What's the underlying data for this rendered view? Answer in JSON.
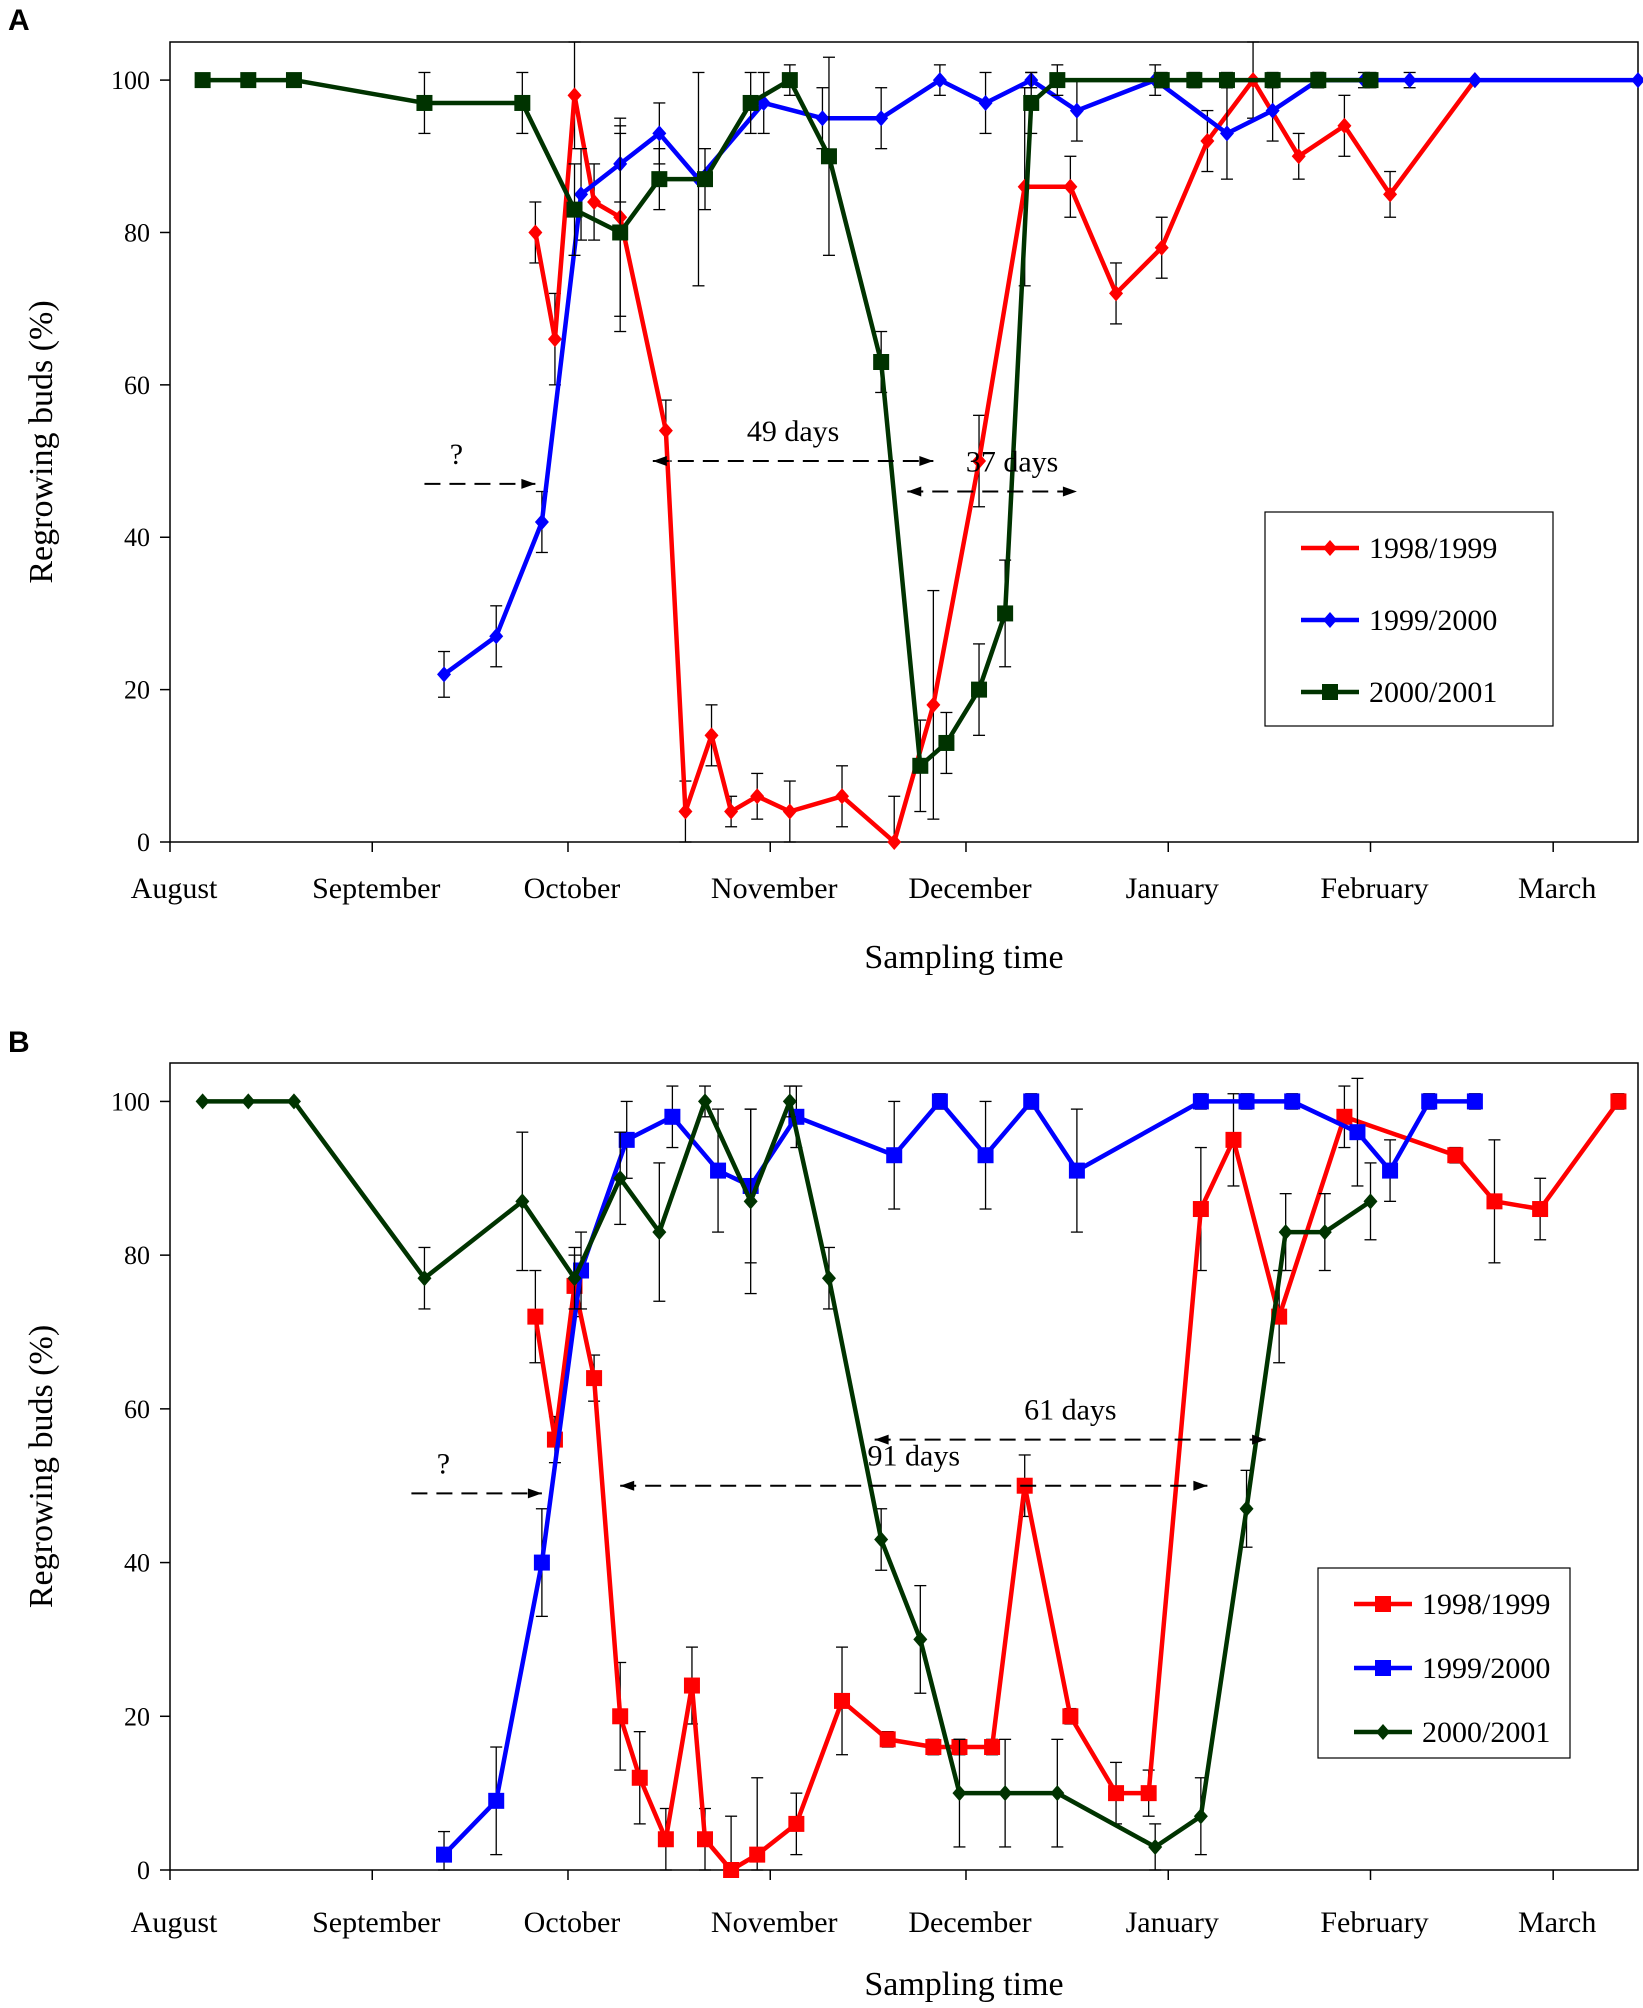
{
  "chart_data": [
    {
      "panel": "A",
      "type": "line",
      "xlabel": "Sampling time",
      "ylabel": "Regrowing buds (%)",
      "ylim": [
        0,
        105
      ],
      "yticks": [
        "0",
        "20",
        "40",
        "60",
        "80",
        "100"
      ],
      "months": [
        "August",
        "September",
        "October",
        "November",
        "December",
        "January",
        "February",
        "March"
      ],
      "x_unit": "days since 1 August",
      "xlim": [
        0,
        225
      ],
      "legend_position": "center-right",
      "series": [
        {
          "name": "1998/1999",
          "color": "#ff0000",
          "marker": "diamond",
          "x": [
            56,
            59,
            62,
            65,
            69,
            76,
            79,
            83,
            86,
            90,
            95,
            103,
            111,
            117,
            124,
            131,
            138,
            145,
            152,
            159,
            166,
            173,
            180,
            187,
            200
          ],
          "y": [
            80,
            66,
            98,
            84,
            82,
            54,
            4,
            14,
            4,
            6,
            4,
            6,
            0,
            18,
            50,
            86,
            86,
            72,
            78,
            92,
            100,
            90,
            94,
            85,
            100
          ],
          "err": [
            4,
            6,
            7,
            5,
            13,
            4,
            4,
            4,
            2,
            3,
            4,
            4,
            6,
            15,
            6,
            13,
            4,
            4,
            4,
            4,
            5,
            3,
            4,
            3,
            0
          ]
        },
        {
          "name": "1999/2000",
          "color": "#0000ff",
          "marker": "diamond",
          "x": [
            42,
            50,
            57,
            63,
            69,
            75,
            81,
            91,
            100,
            109,
            118,
            125,
            132,
            139,
            151,
            162,
            169,
            176,
            183,
            190
          ],
          "y": [
            22,
            27,
            42,
            85,
            89,
            93,
            87,
            97,
            95,
            95,
            100,
            97,
            100,
            96,
            100,
            93,
            96,
            100,
            100,
            100
          ],
          "err": [
            3,
            4,
            4,
            6,
            5,
            4,
            14,
            4,
            4,
            4,
            2,
            4,
            1,
            4,
            2,
            6,
            4,
            1,
            1,
            1
          ],
          "x_extra": [
            200,
            225
          ],
          "y_extra": [
            100,
            100
          ]
        },
        {
          "name": "2000/2001",
          "color": "#003300",
          "marker": "square",
          "x": [
            5,
            12,
            19,
            39,
            54,
            62,
            69,
            75,
            82,
            89,
            95,
            101,
            109,
            115,
            119,
            124,
            128,
            132,
            136,
            152,
            157,
            162,
            169,
            176,
            184
          ],
          "y": [
            100,
            100,
            100,
            97,
            97,
            83,
            80,
            87,
            87,
            97,
            100,
            90,
            63,
            10,
            13,
            20,
            30,
            97,
            100,
            100,
            100,
            100,
            100,
            100,
            100
          ],
          "err": [
            0,
            0,
            0,
            4,
            4,
            6,
            13,
            4,
            4,
            4,
            2,
            13,
            4,
            6,
            4,
            6,
            7,
            4,
            2,
            1,
            1,
            1,
            1,
            1,
            1
          ]
        }
      ],
      "annotations": [
        {
          "text": "?",
          "x_start": 39,
          "x_end": 56,
          "y": 47
        },
        {
          "text": "49 days",
          "x_start": 74,
          "x_end": 117,
          "y": 50
        },
        {
          "text": "37 days",
          "x_start": 113,
          "x_end": 139,
          "y": 46
        }
      ]
    },
    {
      "panel": "B",
      "type": "line",
      "xlabel": "Sampling time",
      "ylabel": "Regrowing buds (%)",
      "ylim": [
        0,
        105
      ],
      "yticks": [
        "0",
        "20",
        "40",
        "60",
        "80",
        "100"
      ],
      "months": [
        "August",
        "September",
        "October",
        "November",
        "December",
        "January",
        "February",
        "March"
      ],
      "x_unit": "days since 1 August",
      "xlim": [
        0,
        225
      ],
      "legend_position": "bottom-right",
      "series": [
        {
          "name": "1998/1999",
          "color": "#ff0000",
          "marker": "square",
          "x": [
            56,
            59,
            62,
            65,
            69,
            72,
            76,
            80,
            82,
            86,
            90,
            96,
            103,
            110,
            117,
            121,
            126,
            131,
            138,
            145,
            150,
            158,
            163,
            170,
            180,
            197,
            203,
            210,
            222
          ],
          "y": [
            72,
            56,
            76,
            64,
            20,
            12,
            4,
            24,
            4,
            0,
            2,
            6,
            22,
            17,
            16,
            16,
            16,
            50,
            20,
            10,
            10,
            86,
            95,
            72,
            98,
            93,
            87,
            86,
            100
          ],
          "err": [
            6,
            3,
            4,
            3,
            7,
            6,
            4,
            5,
            4,
            7,
            10,
            4,
            7,
            1,
            1,
            1,
            1,
            4,
            1,
            4,
            3,
            8,
            6,
            6,
            4,
            1,
            8,
            4,
            1
          ]
        },
        {
          "name": "1999/2000",
          "color": "#0000ff",
          "marker": "square",
          "x": [
            42,
            50,
            57,
            63,
            70,
            77,
            84,
            89,
            96,
            111,
            118,
            125,
            132,
            139,
            158,
            165,
            172,
            182,
            187,
            193,
            200
          ],
          "y": [
            2,
            9,
            40,
            78,
            95,
            98,
            91,
            89,
            98,
            93,
            100,
            93,
            100,
            91,
            100,
            100,
            100,
            96,
            91,
            100,
            100
          ],
          "err": [
            3,
            7,
            7,
            5,
            5,
            4,
            8,
            10,
            4,
            7,
            1,
            7,
            1,
            8,
            1,
            1,
            1,
            7,
            4,
            1,
            1
          ]
        },
        {
          "name": "2000/2001",
          "color": "#003300",
          "marker": "diamond",
          "x": [
            5,
            12,
            19,
            39,
            54,
            62,
            69,
            75,
            82,
            89,
            95,
            101,
            109,
            115,
            121,
            128,
            136,
            151,
            158,
            165,
            171,
            177,
            184
          ],
          "y": [
            100,
            100,
            100,
            77,
            87,
            77,
            90,
            83,
            100,
            87,
            100,
            77,
            43,
            30,
            10,
            10,
            10,
            3,
            7,
            47,
            83,
            83,
            87
          ],
          "err": [
            0,
            0,
            0,
            4,
            9,
            4,
            6,
            9,
            2,
            12,
            2,
            4,
            4,
            7,
            7,
            7,
            7,
            3,
            5,
            5,
            5,
            5,
            5
          ]
        }
      ],
      "annotations": [
        {
          "text": "?",
          "x_start": 37,
          "x_end": 57,
          "y": 49
        },
        {
          "text": "91 days",
          "x_start": 69,
          "x_end": 159,
          "y": 50
        },
        {
          "text": "61 days",
          "x_start": 108,
          "x_end": 168,
          "y": 56
        }
      ]
    }
  ]
}
